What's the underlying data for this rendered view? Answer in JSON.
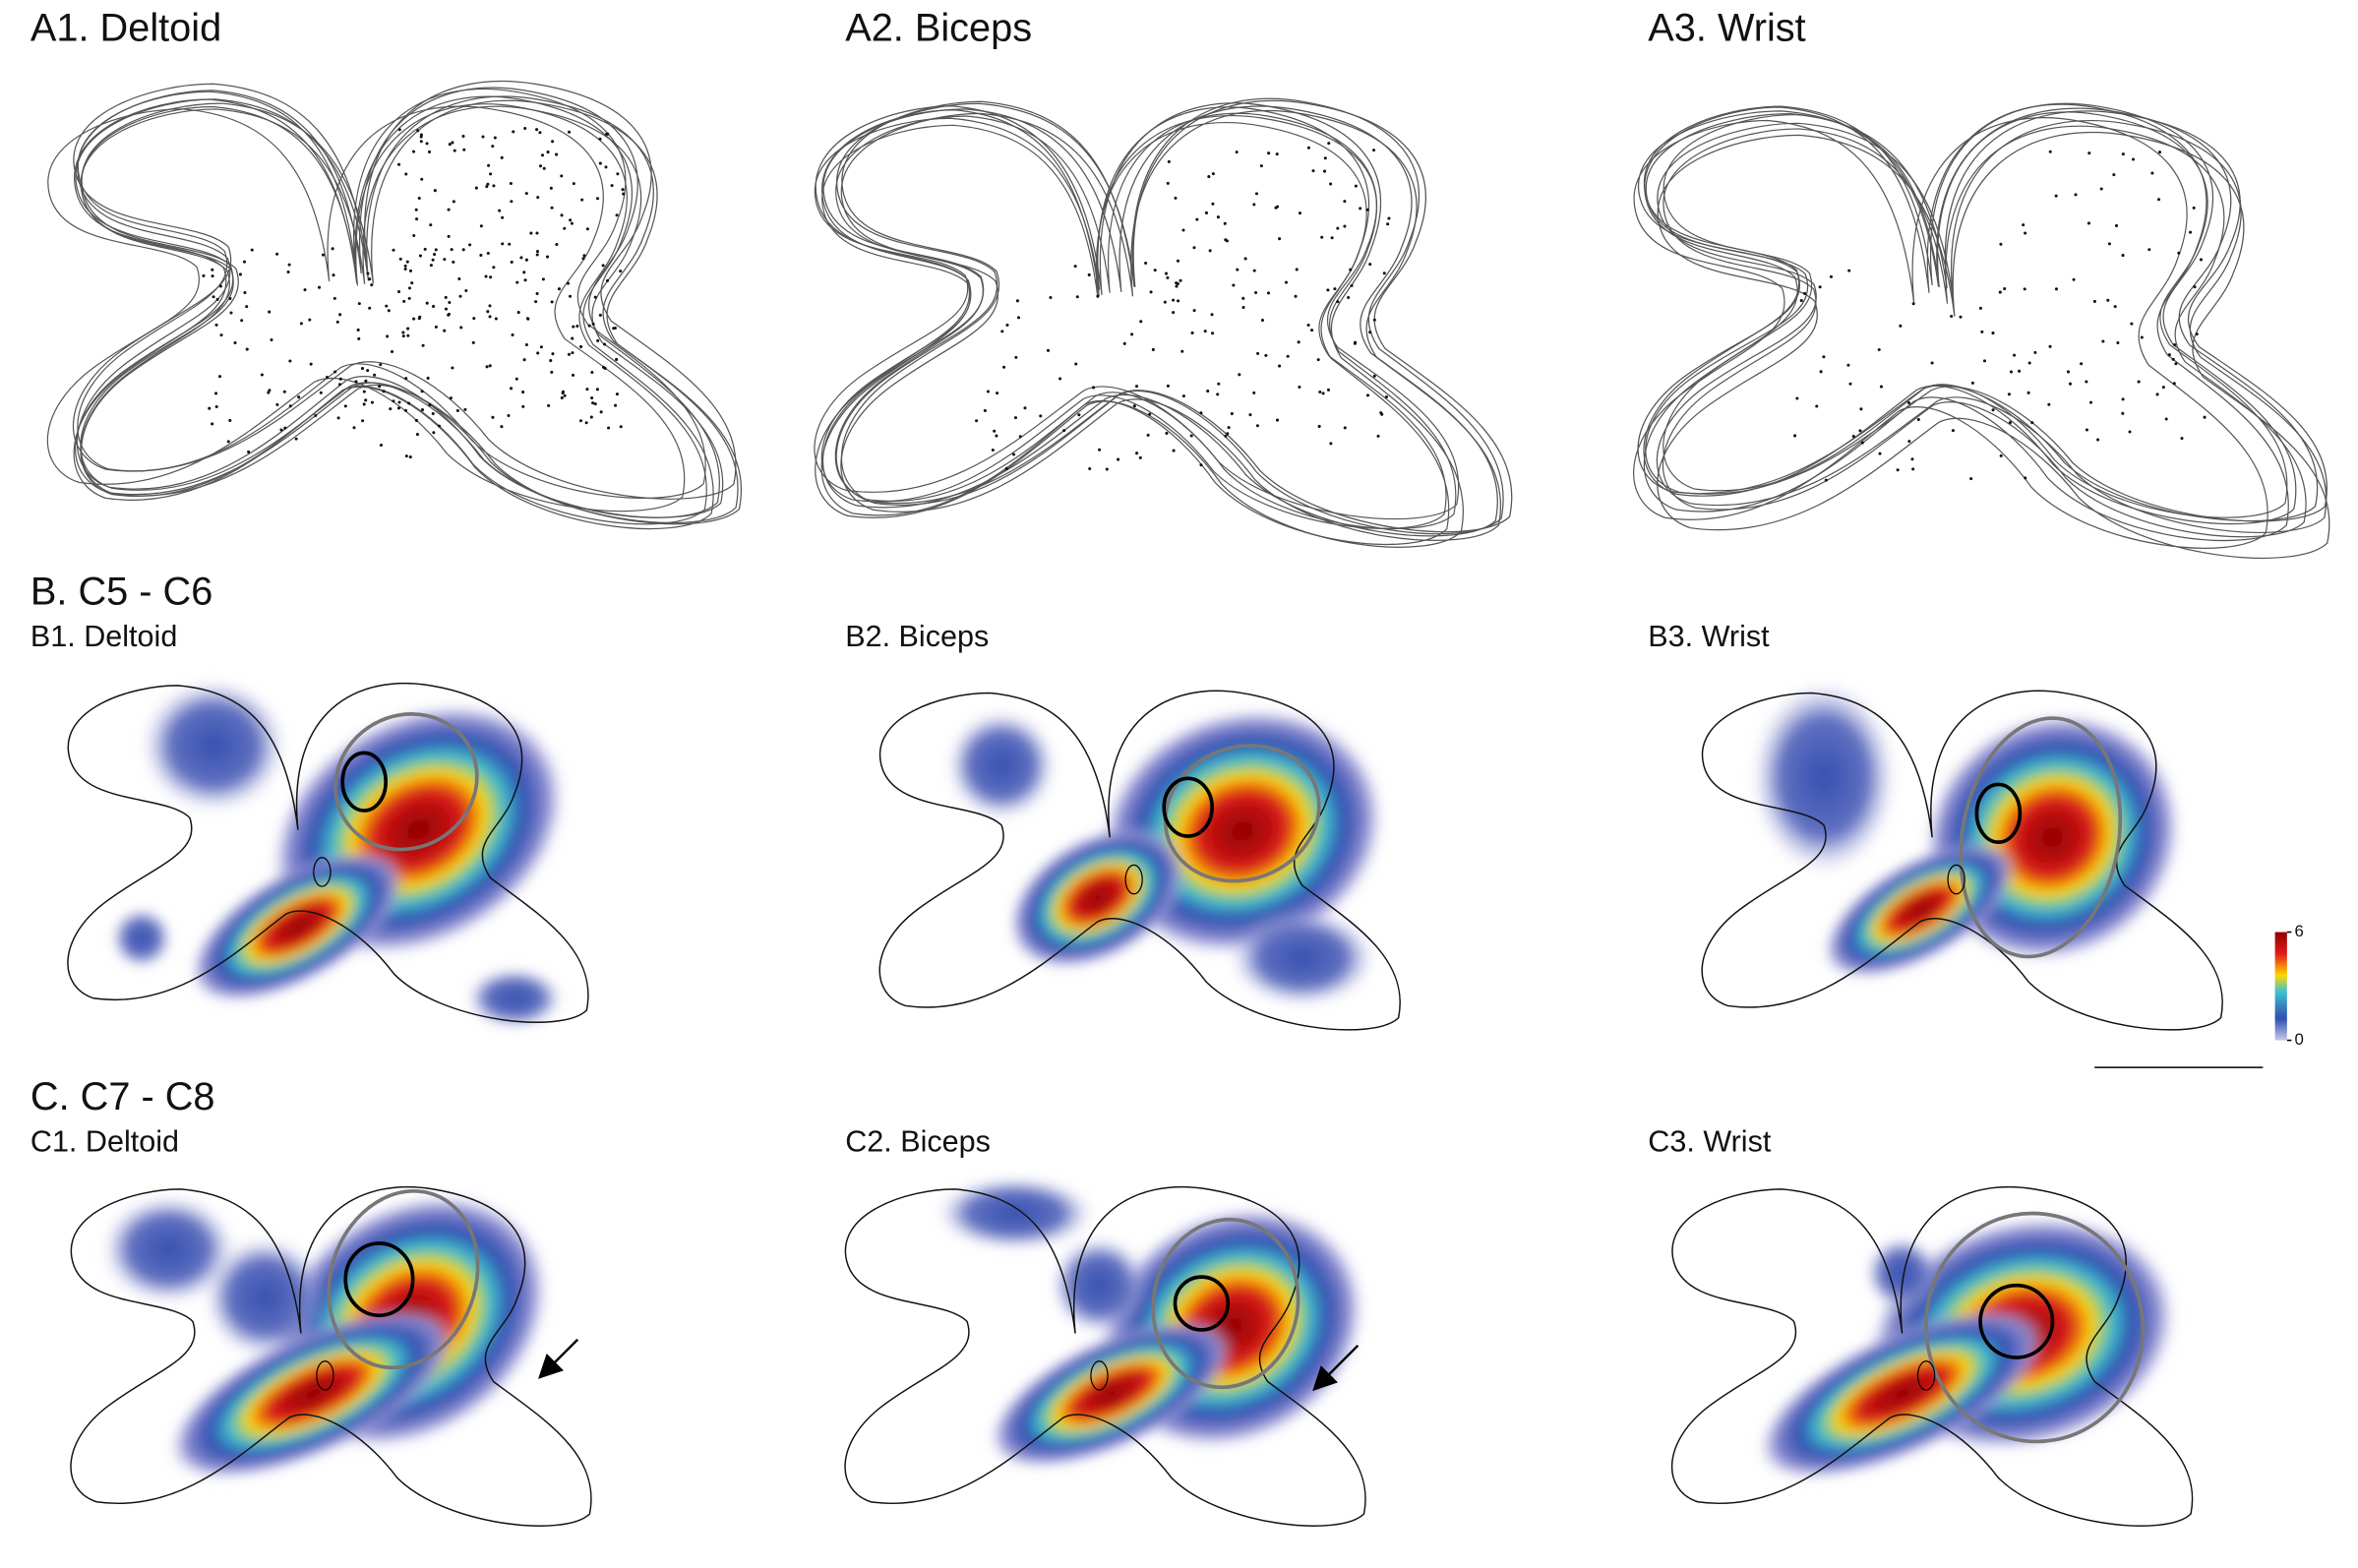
{
  "panels_a": [
    {
      "label": "A1. Deltoid"
    },
    {
      "label": "A2. Biceps"
    },
    {
      "label": "A3. Wrist"
    }
  ],
  "section_b": {
    "heading": "B. C5 - C6",
    "panels": [
      {
        "label": "B1. Deltoid"
      },
      {
        "label": "B2. Biceps"
      },
      {
        "label": "B3. Wrist"
      }
    ]
  },
  "section_c": {
    "heading": "C. C7 - C8",
    "panels": [
      {
        "label": "C1. Deltoid"
      },
      {
        "label": "C2. Biceps"
      },
      {
        "label": "C3. Wrist"
      }
    ]
  },
  "colorbar": {
    "ticks": [
      0,
      6
    ]
  }
}
